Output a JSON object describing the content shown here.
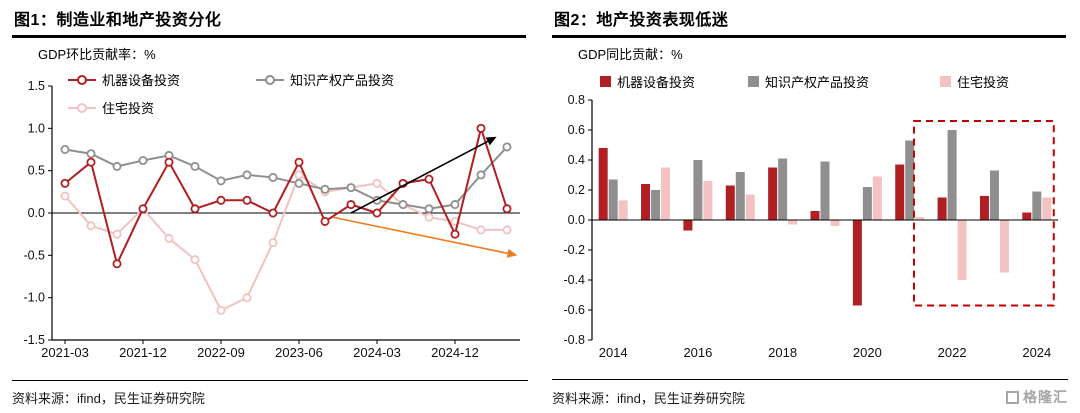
{
  "footer": {
    "source": "资料来源：ifind，民生证券研究院",
    "logo_text": "格隆汇"
  },
  "colors": {
    "equipment_red": "#b01f24",
    "ip_gray": "#8f8f8f",
    "housing_pink": "#f3c2c2",
    "highlight_box_red": "#c00000",
    "arrow_black": "#000000",
    "arrow_orange": "#ef7c21",
    "logo_gray": "#a6a6a6"
  },
  "chart_data": [
    {
      "type": "line",
      "title": "图1：制造业和地产投资分化",
      "ylabel": "GDP环比贡献率：%",
      "x": [
        "2021-03",
        "2021-06",
        "2021-09",
        "2021-12",
        "2022-03",
        "2022-06",
        "2022-09",
        "2022-12",
        "2023-03",
        "2023-06",
        "2023-09",
        "2023-12",
        "2024-03",
        "2024-06",
        "2024-09",
        "2024-12",
        "2025-03",
        "2025-06"
      ],
      "xtick_labels": [
        "2021-03",
        "2021-12",
        "2022-09",
        "2023-06",
        "2024-03",
        "2024-12"
      ],
      "xtick_positions": [
        0,
        3,
        6,
        9,
        12,
        15
      ],
      "ylim": [
        -1.5,
        1.5
      ],
      "ytick_step": 0.5,
      "grid": false,
      "legend_position": "top-left-inside",
      "series": [
        {
          "name": "机器设备投资",
          "color": "#b01f24",
          "values": [
            0.35,
            0.6,
            -0.6,
            0.05,
            0.6,
            0.05,
            0.15,
            0.15,
            0.0,
            0.6,
            -0.1,
            0.1,
            0.0,
            0.35,
            0.4,
            -0.25,
            1.0,
            0.05
          ]
        },
        {
          "name": "知识产权产品投资",
          "color": "#8f8f8f",
          "values": [
            0.75,
            0.7,
            0.55,
            0.62,
            0.68,
            0.55,
            0.38,
            0.45,
            0.42,
            0.35,
            0.28,
            0.3,
            0.15,
            0.1,
            0.05,
            0.1,
            0.45,
            0.78
          ]
        },
        {
          "name": "住宅投资",
          "color": "#f3c2c2",
          "values": [
            0.2,
            -0.15,
            -0.25,
            0.05,
            -0.3,
            -0.55,
            -1.15,
            -1.0,
            -0.35,
            0.45,
            0.25,
            0.3,
            0.35,
            0.1,
            -0.05,
            -0.1,
            -0.2,
            -0.2
          ]
        }
      ],
      "annotations": [
        {
          "type": "arrow",
          "from": [
            11,
            0.0
          ],
          "to": [
            16.6,
            0.9
          ],
          "color": "#000000"
        },
        {
          "type": "arrow",
          "from": [
            10.3,
            -0.05
          ],
          "to": [
            17.4,
            -0.5
          ],
          "color": "#ef7c21"
        }
      ]
    },
    {
      "type": "bar",
      "title": "图2：地产投资表现低迷",
      "ylabel": "GDP同比贡献：%",
      "categories": [
        "2014",
        "2015",
        "2016",
        "2017",
        "2018",
        "2019",
        "2020",
        "2021",
        "2022",
        "2023",
        "2024"
      ],
      "xtick_labels": [
        "2014",
        "2016",
        "2018",
        "2020",
        "2022",
        "2024"
      ],
      "xtick_positions": [
        0,
        2,
        4,
        6,
        8,
        10
      ],
      "ylim": [
        -0.8,
        0.8
      ],
      "ytick_step": 0.2,
      "grid": false,
      "legend_position": "top-inside",
      "series": [
        {
          "name": "机器设备投资",
          "color": "#b01f24",
          "values": [
            0.48,
            0.24,
            -0.07,
            0.23,
            0.35,
            0.06,
            -0.57,
            0.37,
            0.15,
            0.16,
            0.05
          ]
        },
        {
          "name": "知识产权产品投资",
          "color": "#8f8f8f",
          "values": [
            0.27,
            0.2,
            0.4,
            0.32,
            0.41,
            0.39,
            0.22,
            0.53,
            0.6,
            0.33,
            0.19
          ]
        },
        {
          "name": "住宅投资",
          "color": "#f3c2c2",
          "values": [
            0.13,
            0.35,
            0.26,
            0.17,
            -0.03,
            -0.04,
            0.29,
            0.02,
            -0.4,
            -0.35,
            0.15
          ]
        }
      ],
      "highlight_box": {
        "x0": 7.6,
        "x1": 10.9,
        "y0": -0.57,
        "y1": 0.66,
        "color": "#c00000"
      }
    }
  ]
}
